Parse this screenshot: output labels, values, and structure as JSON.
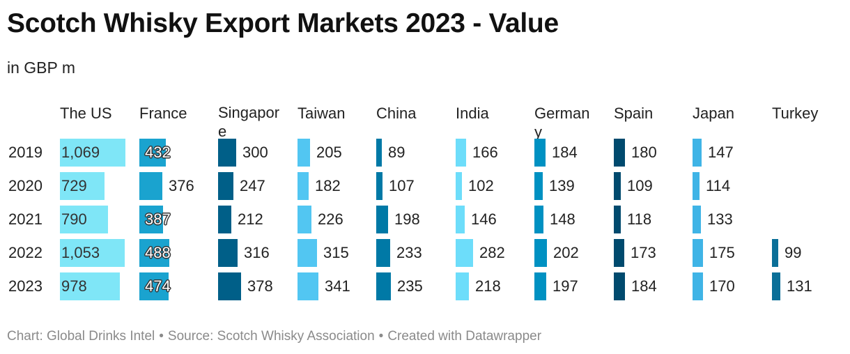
{
  "title": "Scotch Whisky Export Markets 2023 - Value",
  "subtitle": "in GBP m",
  "footer": {
    "chart_credit": "Chart: Global Drinks Intel",
    "source": "Source: Scotch Whisky Association",
    "tool": "Created with Datawrapper",
    "separator": "•"
  },
  "chart_data": {
    "type": "bar",
    "title": "Scotch Whisky Export Markets 2023 - Value",
    "unit": "in GBP m",
    "categories": [
      "2019",
      "2020",
      "2021",
      "2022",
      "2023"
    ],
    "series": [
      {
        "name": "The US",
        "color": "#7fe6f7",
        "values": [
          1069,
          729,
          790,
          1053,
          978
        ],
        "labels": [
          "1,069",
          "729",
          "790",
          "1,053",
          "978"
        ]
      },
      {
        "name": "France",
        "color": "#1aa3cf",
        "values": [
          432,
          376,
          387,
          488,
          474
        ],
        "labels": [
          "432",
          "376",
          "387",
          "488",
          "474"
        ]
      },
      {
        "name": "Singapore",
        "color": "#005f88",
        "values": [
          300,
          247,
          212,
          316,
          378
        ],
        "labels": [
          "300",
          "247",
          "212",
          "316",
          "378"
        ]
      },
      {
        "name": "Taiwan",
        "color": "#52c6f2",
        "values": [
          205,
          182,
          226,
          315,
          341
        ],
        "labels": [
          "205",
          "182",
          "226",
          "315",
          "341"
        ]
      },
      {
        "name": "China",
        "color": "#0079a6",
        "values": [
          89,
          107,
          198,
          233,
          235
        ],
        "labels": [
          "89",
          "107",
          "198",
          "233",
          "235"
        ]
      },
      {
        "name": "India",
        "color": "#6dddfa",
        "values": [
          166,
          102,
          146,
          282,
          218
        ],
        "labels": [
          "166",
          "102",
          "146",
          "282",
          "218"
        ]
      },
      {
        "name": "Germany",
        "color": "#0091c2",
        "values": [
          184,
          139,
          148,
          202,
          197
        ],
        "labels": [
          "184",
          "139",
          "148",
          "202",
          "197"
        ]
      },
      {
        "name": "Spain",
        "color": "#004a6e",
        "values": [
          180,
          109,
          118,
          173,
          184
        ],
        "labels": [
          "180",
          "109",
          "118",
          "173",
          "184"
        ]
      },
      {
        "name": "Japan",
        "color": "#3fb4e6",
        "values": [
          147,
          114,
          133,
          175,
          170
        ],
        "labels": [
          "147",
          "114",
          "133",
          "175",
          "170"
        ]
      },
      {
        "name": "Turkey",
        "color": "#0a6f98",
        "values": [
          null,
          null,
          null,
          99,
          131
        ],
        "labels": [
          "",
          "",
          "",
          "99",
          "131"
        ]
      }
    ],
    "xlim": [
      0,
      1069
    ],
    "grid": false,
    "legend": "none"
  }
}
